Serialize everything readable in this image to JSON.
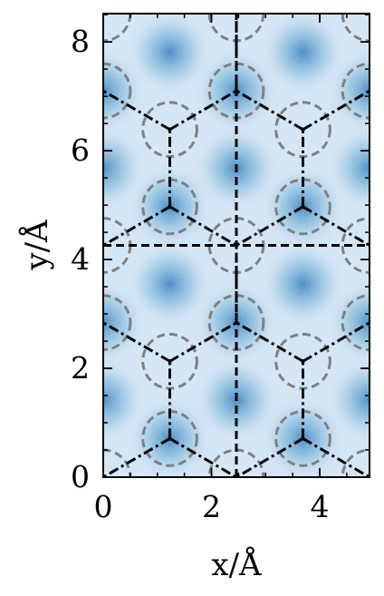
{
  "chart_data": {
    "type": "heatmap",
    "title": "",
    "xlabel": "x/Å",
    "ylabel": "y/Å",
    "xlim": [
      0,
      4.92
    ],
    "ylim": [
      0,
      8.52
    ],
    "x_ticks": [
      {
        "value": 0,
        "label": "0"
      },
      {
        "value": 2,
        "label": "2"
      },
      {
        "value": 4,
        "label": "4"
      }
    ],
    "y_ticks": [
      {
        "value": 0,
        "label": "0"
      },
      {
        "value": 2,
        "label": "2"
      },
      {
        "value": 4,
        "label": "4"
      },
      {
        "value": 6,
        "label": "6"
      },
      {
        "value": 8,
        "label": "8"
      }
    ],
    "colormap": [
      "#ffffff",
      "#c6dbef",
      "#6baed6",
      "#2171b5",
      "#08306b"
    ],
    "density_maxima": [
      [
        1.23,
        0.71
      ],
      [
        3.69,
        0.71
      ],
      [
        0,
        1.42
      ],
      [
        2.46,
        1.42
      ],
      [
        4.92,
        1.42
      ],
      [
        0,
        2.84
      ],
      [
        2.46,
        2.84
      ],
      [
        4.92,
        2.84
      ],
      [
        1.23,
        3.55
      ],
      [
        3.69,
        3.55
      ],
      [
        1.23,
        4.97
      ],
      [
        3.69,
        4.97
      ],
      [
        0,
        5.68
      ],
      [
        2.46,
        5.68
      ],
      [
        4.92,
        5.68
      ],
      [
        0,
        7.1
      ],
      [
        2.46,
        7.1
      ],
      [
        4.92,
        7.1
      ],
      [
        1.23,
        7.81
      ],
      [
        3.69,
        7.81
      ]
    ],
    "circle_centers": [
      [
        2.46,
        0
      ],
      [
        4.92,
        0
      ],
      [
        0.0,
        0
      ],
      [
        1.23,
        0.71
      ],
      [
        3.69,
        0.71
      ],
      [
        1.23,
        2.13
      ],
      [
        3.69,
        2.13
      ],
      [
        0,
        2.84
      ],
      [
        2.46,
        2.84
      ],
      [
        4.92,
        2.84
      ],
      [
        0,
        4.26
      ],
      [
        2.46,
        4.26
      ],
      [
        4.92,
        4.26
      ],
      [
        1.23,
        4.97
      ],
      [
        3.69,
        4.97
      ],
      [
        1.23,
        6.39
      ],
      [
        3.69,
        6.39
      ],
      [
        0,
        7.1
      ],
      [
        2.46,
        7.1
      ],
      [
        4.92,
        7.1
      ],
      [
        0,
        8.52
      ],
      [
        2.46,
        8.52
      ],
      [
        4.92,
        8.52
      ]
    ],
    "circle_radius": 0.5,
    "circle_color": "#808080",
    "cell_dividers": {
      "x": 2.46,
      "y": 4.26
    },
    "hex_network": {
      "vertices": [
        [
          1.23,
          0.71
        ],
        [
          3.69,
          0.71
        ],
        [
          1.23,
          2.13
        ],
        [
          3.69,
          2.13
        ],
        [
          2.46,
          2.84
        ],
        [
          1.23,
          4.97
        ],
        [
          3.69,
          4.97
        ],
        [
          1.23,
          6.39
        ],
        [
          3.69,
          6.39
        ],
        [
          2.46,
          7.1
        ]
      ],
      "edges": [
        [
          [
            1.23,
            0.71
          ],
          [
            0,
            0
          ]
        ],
        [
          [
            1.23,
            0.71
          ],
          [
            2.46,
            0
          ]
        ],
        [
          [
            1.23,
            0.71
          ],
          [
            1.23,
            2.13
          ]
        ],
        [
          [
            3.69,
            0.71
          ],
          [
            2.46,
            0
          ]
        ],
        [
          [
            3.69,
            0.71
          ],
          [
            4.92,
            0
          ]
        ],
        [
          [
            3.69,
            0.71
          ],
          [
            3.69,
            2.13
          ]
        ],
        [
          [
            1.23,
            2.13
          ],
          [
            0,
            2.84
          ]
        ],
        [
          [
            1.23,
            2.13
          ],
          [
            2.46,
            2.84
          ]
        ],
        [
          [
            3.69,
            2.13
          ],
          [
            2.46,
            2.84
          ]
        ],
        [
          [
            3.69,
            2.13
          ],
          [
            4.92,
            2.84
          ]
        ],
        [
          [
            2.46,
            2.84
          ],
          [
            2.46,
            4.26
          ]
        ],
        [
          [
            1.23,
            4.97
          ],
          [
            0,
            4.26
          ]
        ],
        [
          [
            1.23,
            4.97
          ],
          [
            2.46,
            4.26
          ]
        ],
        [
          [
            1.23,
            4.97
          ],
          [
            1.23,
            6.39
          ]
        ],
        [
          [
            3.69,
            4.97
          ],
          [
            2.46,
            4.26
          ]
        ],
        [
          [
            3.69,
            4.97
          ],
          [
            4.92,
            4.26
          ]
        ],
        [
          [
            3.69,
            4.97
          ],
          [
            3.69,
            6.39
          ]
        ],
        [
          [
            1.23,
            6.39
          ],
          [
            0,
            7.1
          ]
        ],
        [
          [
            1.23,
            6.39
          ],
          [
            2.46,
            7.1
          ]
        ],
        [
          [
            3.69,
            6.39
          ],
          [
            2.46,
            7.1
          ]
        ],
        [
          [
            3.69,
            6.39
          ],
          [
            4.92,
            7.1
          ]
        ],
        [
          [
            2.46,
            7.1
          ],
          [
            2.46,
            8.52
          ]
        ]
      ]
    },
    "grid": false,
    "legend": "none"
  }
}
